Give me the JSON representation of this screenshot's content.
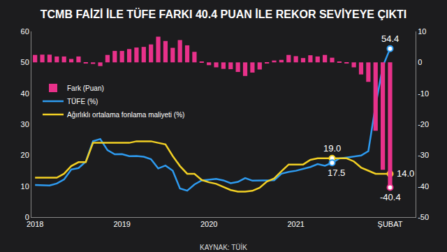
{
  "chart_data": {
    "type": "bar",
    "title": "TCMB FAİZİ İLE TÜFE FARKI 40.4 PUAN İLE REKOR SEVİYEYE ÇIKTI",
    "source": "KAYNAK: TÜİK",
    "categories": [
      "2018",
      null,
      null,
      null,
      null,
      null,
      null,
      null,
      null,
      null,
      null,
      null,
      "2019",
      null,
      null,
      null,
      null,
      null,
      null,
      null,
      null,
      null,
      null,
      null,
      "2020",
      null,
      null,
      null,
      null,
      null,
      null,
      null,
      null,
      null,
      null,
      null,
      "2021",
      null,
      null,
      null,
      null,
      null,
      null,
      null,
      null,
      null,
      null,
      null,
      null,
      "ŞUBAT"
    ],
    "series": [
      {
        "name": "Fark (Puan)",
        "type": "bar",
        "axis": "y2",
        "color": "#e8318a",
        "values": [
          2.4,
          2.5,
          2.5,
          1.9,
          1.9,
          1.1,
          1.9,
          -0.2,
          -0.5,
          -1.2,
          2.4,
          3.7,
          3.7,
          4.3,
          4.8,
          5.0,
          5.8,
          8.3,
          6.9,
          4.7,
          7.2,
          5.5,
          3.4,
          0.2,
          -0.9,
          -1.6,
          -2.1,
          -2.2,
          -3.1,
          -4.4,
          -3.3,
          -2.3,
          -0.3,
          0.6,
          0.8,
          2.4,
          2.0,
          1.4,
          2.3,
          1.9,
          2.4,
          1.5,
          0.1,
          -0.3,
          -1.6,
          -3.9,
          -6.3,
          -22.1,
          -34.7,
          -40.4
        ]
      },
      {
        "name": "TÜFE (%)",
        "type": "line",
        "color": "#2e9bf0",
        "values": [
          10.35,
          10.26,
          10.23,
          10.85,
          12.15,
          15.39,
          15.85,
          17.9,
          24.52,
          25.24,
          21.62,
          20.3,
          20.35,
          19.67,
          19.71,
          19.5,
          18.71,
          15.72,
          16.65,
          15.01,
          9.26,
          8.55,
          10.56,
          11.84,
          12.15,
          12.37,
          11.86,
          10.94,
          11.39,
          12.62,
          11.76,
          11.77,
          11.75,
          11.89,
          14.03,
          14.6,
          14.97,
          15.61,
          16.19,
          17.14,
          16.59,
          17.53,
          18.95,
          19.25,
          19.58,
          19.89,
          21.31,
          36.08,
          48.69,
          54.44
        ]
      },
      {
        "name": "Ağırlıklı ortalama fonlama maliyeti (%)",
        "type": "line",
        "color": "#f2d024",
        "values": [
          12.75,
          12.75,
          12.75,
          12.75,
          14.0,
          16.5,
          17.75,
          17.75,
          24.0,
          24.0,
          24.0,
          24.0,
          24.0,
          24.0,
          24.5,
          24.5,
          24.5,
          24.0,
          23.5,
          19.75,
          16.5,
          14.0,
          14.0,
          12.0,
          11.25,
          10.75,
          9.75,
          8.75,
          8.25,
          8.25,
          8.5,
          9.5,
          11.5,
          12.5,
          14.8,
          17.0,
          17.0,
          17.0,
          18.5,
          19.0,
          19.0,
          19.0,
          19.0,
          19.0,
          18.0,
          16.0,
          15.0,
          14.0,
          14.0,
          14.0
        ]
      }
    ],
    "annotations": [
      {
        "text": "54.4",
        "series": "TÜFE (%)",
        "index": 49
      },
      {
        "text": "19.0",
        "series": "Ağırlıklı ortalama fonlama maliyeti (%)",
        "index": 41
      },
      {
        "text": "17.5",
        "series": "TÜFE (%)",
        "index": 41
      },
      {
        "text": "14.0",
        "series": "Ağırlıklı ortalama fonlama maliyeti (%)",
        "index": 49
      },
      {
        "text": "-40.4",
        "series": "Fark (Puan)",
        "index": 49
      }
    ],
    "ylim": [
      0,
      60
    ],
    "yticks": [
      0,
      10,
      20,
      30,
      40,
      50,
      60
    ],
    "y2lim": [
      -50,
      10
    ],
    "y2ticks": [
      -50,
      -40,
      -30,
      -20,
      -10,
      0,
      10
    ],
    "grid": false,
    "legend": "upper left"
  }
}
